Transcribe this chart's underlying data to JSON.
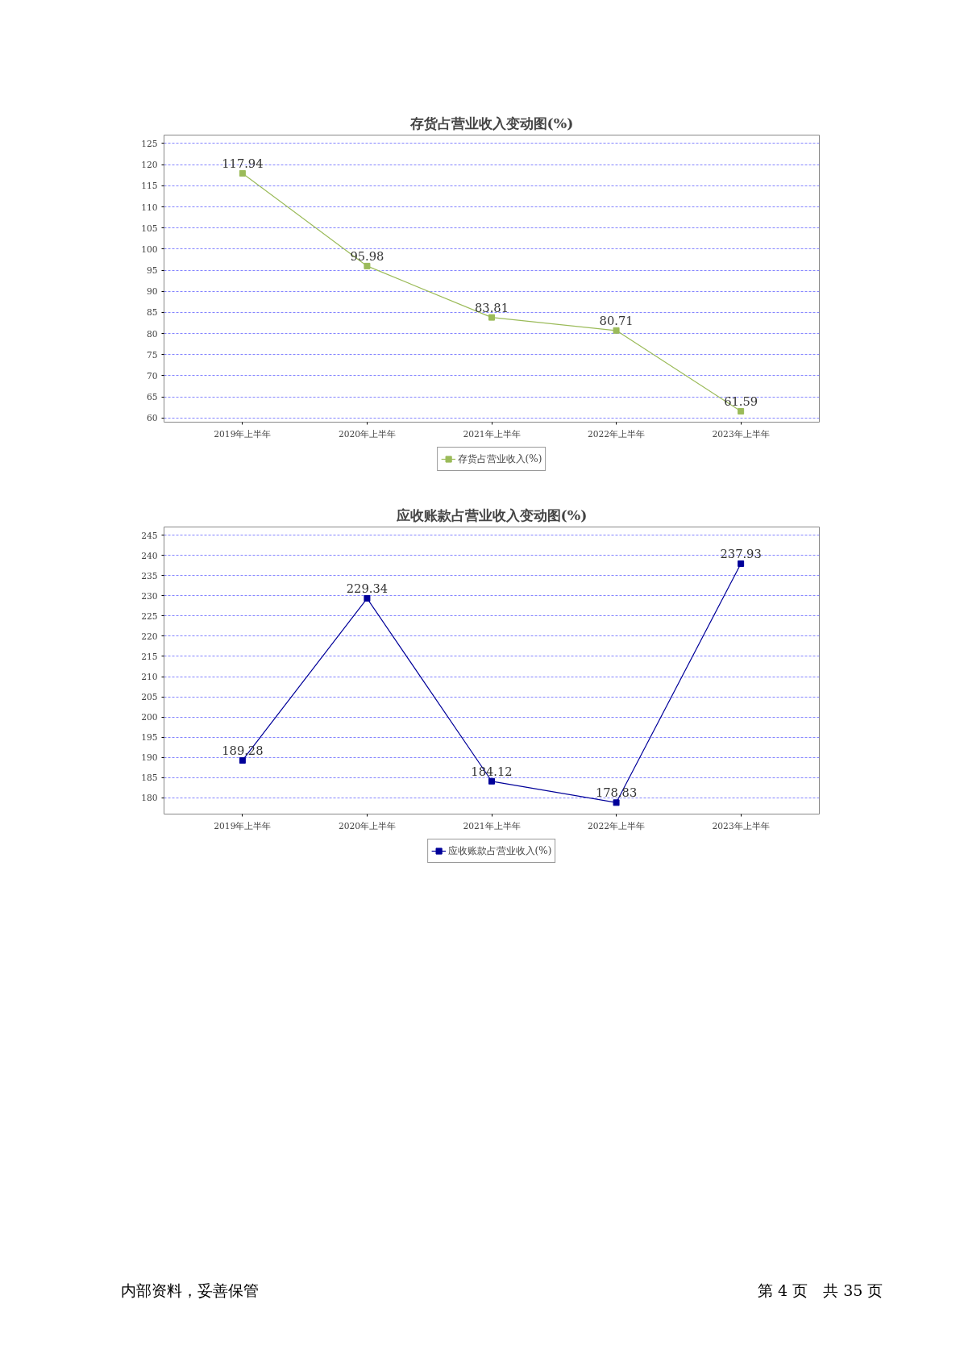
{
  "chart_data": [
    {
      "type": "line",
      "title": "存货占营业收入变动图(%)",
      "categories": [
        "2019年上半年",
        "2020年上半年",
        "2021年上半年",
        "2022年上半年",
        "2023年上半年"
      ],
      "series": [
        {
          "name": "存货占营业收入(%)",
          "color": "#9bbb59",
          "values": [
            117.94,
            95.98,
            83.81,
            80.71,
            61.59
          ]
        }
      ],
      "ylim": [
        59,
        127
      ],
      "yticks": [
        60,
        65,
        70,
        75,
        80,
        85,
        90,
        95,
        100,
        105,
        110,
        115,
        120,
        125
      ],
      "grid": "y",
      "legend": "bottom",
      "marker": "square",
      "line_style": "solid",
      "data_labels": true
    },
    {
      "type": "line",
      "title": "应收账款占营业收入变动图(%)",
      "categories": [
        "2019年上半年",
        "2020年上半年",
        "2021年上半年",
        "2022年上半年",
        "2023年上半年"
      ],
      "series": [
        {
          "name": "应收账款占营业收入(%)",
          "color": "#000099",
          "values": [
            189.28,
            229.34,
            184.12,
            178.83,
            237.93
          ]
        }
      ],
      "ylim": [
        176,
        247
      ],
      "yticks": [
        180,
        185,
        190,
        195,
        200,
        205,
        210,
        215,
        220,
        225,
        230,
        235,
        240,
        245
      ],
      "grid": "y",
      "legend": "bottom",
      "marker": "square",
      "line_style": "solid",
      "data_labels": true,
      "annotations": [
        "内部资料，妥善保管",
        "第 4 页　共 35 页"
      ]
    }
  ]
}
